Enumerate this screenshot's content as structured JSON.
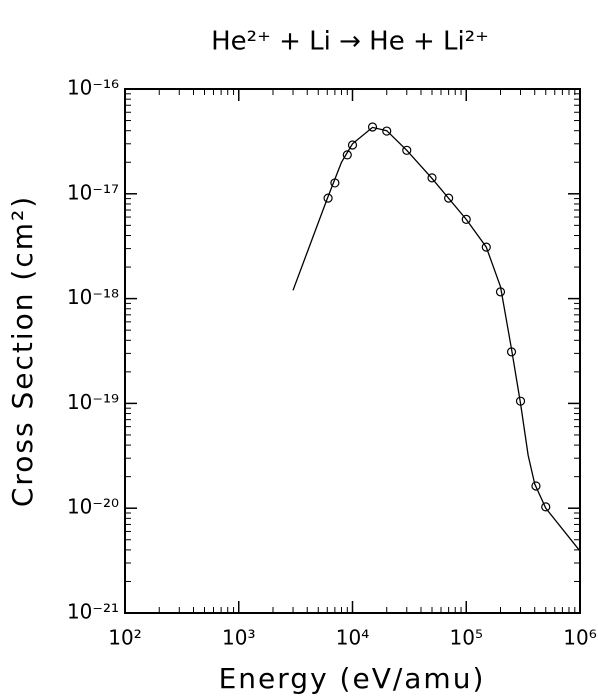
{
  "chart_data": {
    "type": "line",
    "title": "He²⁺ + Li → He + Li²⁺",
    "xlabel": "Energy (eV/amu)",
    "ylabel": "Cross Section (cm²)",
    "xscale": "log",
    "yscale": "log",
    "xlim": [
      100,
      1000000
    ],
    "ylim": [
      1e-21,
      1e-16
    ],
    "xticks": [
      {
        "value": 100,
        "label": "10²"
      },
      {
        "value": 1000,
        "label": "10³"
      },
      {
        "value": 10000,
        "label": "10⁴"
      },
      {
        "value": 100000,
        "label": "10⁵"
      },
      {
        "value": 1000000,
        "label": "10⁶"
      }
    ],
    "yticks": [
      {
        "value": 1e-21,
        "label": "10⁻²¹"
      },
      {
        "value": 1e-20,
        "label": "10⁻²⁰"
      },
      {
        "value": 1e-19,
        "label": "10⁻¹⁹"
      },
      {
        "value": 1e-18,
        "label": "10⁻¹⁸"
      },
      {
        "value": 1e-17,
        "label": "10⁻¹⁷"
      },
      {
        "value": 1e-16,
        "label": "10⁻¹⁶"
      }
    ],
    "color": "#000000",
    "line": {
      "x": [
        3000,
        6000,
        8000,
        10000,
        15000,
        20000,
        30000,
        50000,
        100000,
        150000,
        200000,
        250000,
        300000,
        350000,
        400000,
        500000,
        1000000
      ],
      "values": [
        1.2e-18,
        9e-18,
        2e-17,
        3e-17,
        4.3e-17,
        4e-17,
        2.6e-17,
        1.4e-17,
        5.7e-18,
        3.1e-18,
        1.3e-18,
        3.3e-19,
        1e-19,
        3.2e-20,
        1.7e-20,
        1e-20,
        3.9e-21
      ]
    },
    "points": {
      "x": [
        6100,
        7000,
        9000,
        10000,
        15000,
        20000,
        30000,
        50000,
        70000,
        100000,
        150000,
        200000,
        250000,
        300000,
        410000,
        500000
      ],
      "values": [
        9.1e-18,
        1.27e-17,
        2.35e-17,
        2.92e-17,
        4.34e-17,
        3.97e-17,
        2.6e-17,
        1.42e-17,
        9.1e-18,
        5.7e-18,
        3.1e-18,
        1.16e-18,
        3.1e-19,
        1.05e-19,
        1.63e-20,
        1.03e-20
      ]
    }
  }
}
